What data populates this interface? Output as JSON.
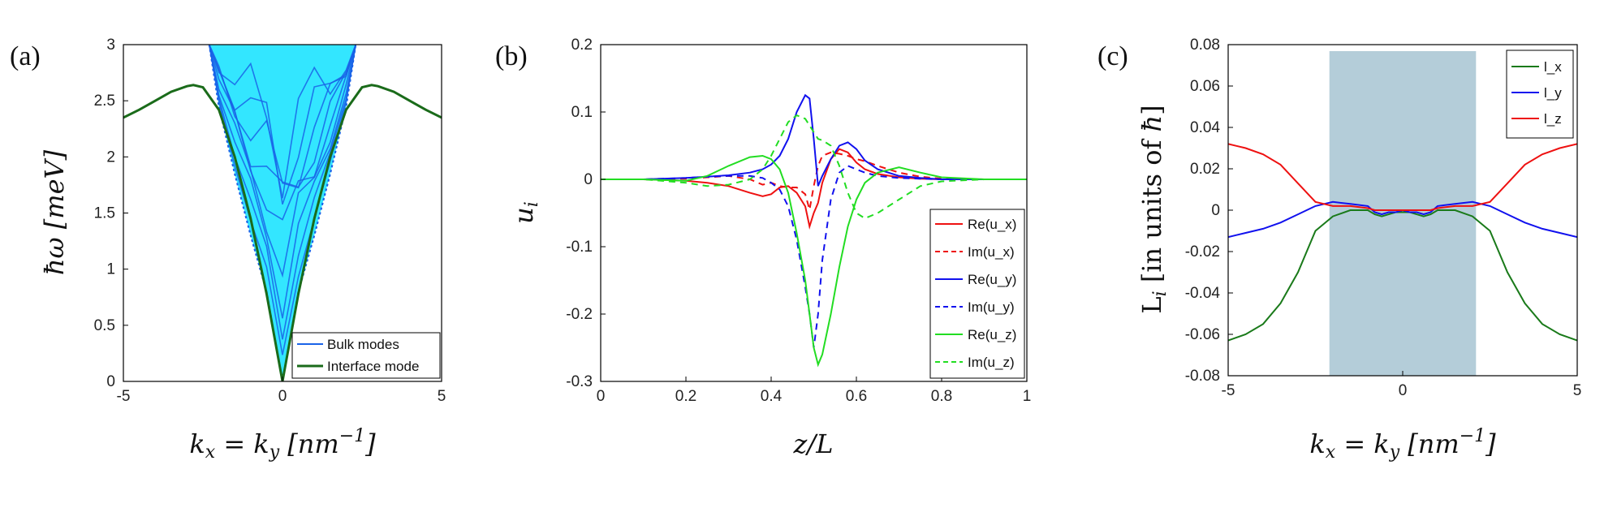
{
  "chart_data": [
    {
      "panel_label": "(a)",
      "type": "line",
      "xlabel": "k_x = k_y [nm^{-1}]",
      "ylabel": "ħω [meV]",
      "xlim": [
        -5,
        5
      ],
      "ylim": [
        0,
        3
      ],
      "xticks": [
        "-5",
        "0",
        "5"
      ],
      "yticks": [
        "0",
        "0.5",
        "1",
        "1.5",
        "2",
        "2.5",
        "3"
      ],
      "grid": false,
      "legend_position": "bottom-right",
      "colors": {
        "bulk": "#1a63e8",
        "bulk_fill": "#33e6ff",
        "interface": "#1a6b1a"
      },
      "series": [
        {
          "name": "Bulk modes",
          "style": "band",
          "x": [
            -2.3,
            -2.0,
            -1.5,
            -1.0,
            -0.5,
            0,
            0.5,
            1.0,
            1.5,
            2.0,
            2.3
          ],
          "y_upper": [
            3.0,
            3.0,
            3.0,
            3.0,
            3.0,
            3.0,
            3.0,
            3.0,
            3.0,
            3.0,
            3.0
          ],
          "y_lower": [
            3.0,
            2.45,
            1.85,
            1.3,
            0.8,
            0.0,
            0.8,
            1.3,
            1.85,
            2.45,
            3.0
          ]
        },
        {
          "name": "Interface mode",
          "x": [
            -5,
            -4.5,
            -4,
            -3.5,
            -3,
            -2.8,
            -2.5,
            -2,
            -1.5,
            -1,
            -0.5,
            0,
            0.5,
            1,
            1.5,
            2,
            2.5,
            2.8,
            3,
            3.5,
            4,
            4.5,
            5
          ],
          "y": [
            2.35,
            2.42,
            2.5,
            2.58,
            2.63,
            2.64,
            2.62,
            2.42,
            2.0,
            1.45,
            0.78,
            0.0,
            0.78,
            1.45,
            2.0,
            2.42,
            2.62,
            2.64,
            2.63,
            2.58,
            2.5,
            2.42,
            2.35
          ]
        }
      ]
    },
    {
      "panel_label": "(b)",
      "type": "line",
      "xlabel": "z/L",
      "ylabel": "u_i",
      "xlim": [
        0,
        1
      ],
      "ylim": [
        -0.3,
        0.2
      ],
      "xticks": [
        "0",
        "0.2",
        "0.4",
        "0.6",
        "0.8",
        "1"
      ],
      "yticks": [
        "-0.3",
        "-0.2",
        "-0.1",
        "0",
        "0.1",
        "0.2"
      ],
      "grid": false,
      "legend_position": "bottom-right",
      "x": [
        0,
        0.1,
        0.2,
        0.25,
        0.3,
        0.35,
        0.38,
        0.4,
        0.42,
        0.44,
        0.46,
        0.48,
        0.49,
        0.5,
        0.51,
        0.52,
        0.54,
        0.56,
        0.58,
        0.6,
        0.62,
        0.65,
        0.7,
        0.75,
        0.8,
        0.9,
        1.0
      ],
      "series": [
        {
          "name": "Re(u_x)",
          "color": "#ee1111",
          "dash": false,
          "y": [
            0,
            0,
            -0.002,
            -0.005,
            -0.01,
            -0.02,
            -0.025,
            -0.022,
            -0.012,
            -0.01,
            -0.02,
            -0.04,
            -0.07,
            -0.05,
            -0.035,
            -0.005,
            0.03,
            0.045,
            0.04,
            0.025,
            0.015,
            0.008,
            0.003,
            0.001,
            0,
            0,
            0
          ]
        },
        {
          "name": "Im(u_x)",
          "color": "#ee1111",
          "dash": true,
          "y": [
            0,
            0,
            0.001,
            0.003,
            0.005,
            0.0,
            -0.008,
            -0.005,
            -0.01,
            -0.012,
            -0.012,
            -0.022,
            -0.045,
            -0.01,
            0.02,
            0.035,
            0.04,
            0.038,
            0.035,
            0.03,
            0.027,
            0.02,
            0.01,
            0.004,
            0.001,
            0,
            0
          ]
        },
        {
          "name": "Re(u_y)",
          "color": "#1111ee",
          "dash": false,
          "y": [
            0,
            0,
            0.002,
            0.004,
            0.006,
            0.01,
            0.015,
            0.022,
            0.035,
            0.06,
            0.1,
            0.125,
            0.12,
            0.06,
            -0.01,
            0.005,
            0.03,
            0.05,
            0.055,
            0.045,
            0.028,
            0.015,
            0.005,
            0.002,
            0,
            0,
            0
          ]
        },
        {
          "name": "Im(u_y)",
          "color": "#1111ee",
          "dash": true,
          "y": [
            0,
            0,
            0.002,
            0.004,
            0.005,
            0.005,
            0.002,
            -0.005,
            -0.015,
            -0.04,
            -0.09,
            -0.16,
            -0.2,
            -0.25,
            -0.2,
            -0.12,
            -0.03,
            0.01,
            0.02,
            0.015,
            0.01,
            0.005,
            0.002,
            0.001,
            0,
            0,
            0
          ]
        },
        {
          "name": "Re(u_z)",
          "color": "#22dd22",
          "dash": false,
          "y": [
            0,
            0,
            -0.002,
            0.005,
            0.02,
            0.033,
            0.035,
            0.03,
            0.015,
            -0.02,
            -0.08,
            -0.15,
            -0.2,
            -0.25,
            -0.275,
            -0.26,
            -0.2,
            -0.13,
            -0.07,
            -0.03,
            -0.005,
            0.01,
            0.018,
            0.01,
            0.003,
            0,
            0
          ]
        },
        {
          "name": "Im(u_z)",
          "color": "#22dd22",
          "dash": true,
          "y": [
            0,
            0,
            -0.005,
            -0.01,
            -0.008,
            0.0,
            0.015,
            0.035,
            0.06,
            0.085,
            0.095,
            0.09,
            0.08,
            0.07,
            0.06,
            0.058,
            0.05,
            0.02,
            -0.02,
            -0.05,
            -0.058,
            -0.05,
            -0.03,
            -0.01,
            -0.003,
            0,
            0
          ]
        }
      ]
    },
    {
      "panel_label": "(c)",
      "type": "line",
      "xlabel": "k_x = k_y [nm^{-1}]",
      "ylabel": "L_i [in units of ħ]",
      "xlim": [
        -5,
        5
      ],
      "ylim": [
        -0.08,
        0.08
      ],
      "xticks": [
        "-5",
        "0",
        "5"
      ],
      "yticks": [
        "-0.08",
        "-0.06",
        "-0.04",
        "-0.02",
        "0",
        "0.02",
        "0.04",
        "0.06",
        "0.08"
      ],
      "grid": false,
      "legend_position": "top-right",
      "shaded_region": {
        "x": [
          -2.1,
          2.1
        ],
        "color": "#b4cdd9"
      },
      "x": [
        -5,
        -4.5,
        -4,
        -3.5,
        -3,
        -2.5,
        -2,
        -1.5,
        -1,
        -0.8,
        -0.6,
        -0.4,
        -0.2,
        0,
        0.2,
        0.4,
        0.6,
        0.8,
        1,
        1.5,
        2,
        2.5,
        3,
        3.5,
        4,
        4.5,
        5
      ],
      "series": [
        {
          "name": "l_x",
          "color": "#1a7a1a",
          "y": [
            -0.063,
            -0.06,
            -0.055,
            -0.045,
            -0.03,
            -0.01,
            -0.003,
            0.0,
            0.0,
            -0.002,
            -0.003,
            -0.002,
            -0.001,
            -0.001,
            -0.001,
            -0.002,
            -0.003,
            -0.002,
            0.0,
            0.0,
            -0.003,
            -0.01,
            -0.03,
            -0.045,
            -0.055,
            -0.06,
            -0.063
          ]
        },
        {
          "name": "l_y",
          "color": "#1111ee",
          "y": [
            -0.013,
            -0.011,
            -0.009,
            -0.006,
            -0.002,
            0.002,
            0.004,
            0.003,
            0.002,
            -0.001,
            -0.002,
            -0.001,
            -0.001,
            0.0,
            -0.001,
            -0.001,
            -0.002,
            -0.001,
            0.002,
            0.003,
            0.004,
            0.002,
            -0.002,
            -0.006,
            -0.009,
            -0.011,
            -0.013
          ]
        },
        {
          "name": "l_z",
          "color": "#ee1111",
          "y": [
            0.032,
            0.03,
            0.027,
            0.022,
            0.013,
            0.004,
            0.002,
            0.002,
            0.001,
            0.0,
            0.0,
            0.0,
            0.0,
            0.0,
            0.0,
            0.0,
            0.0,
            0.0,
            0.001,
            0.002,
            0.002,
            0.004,
            0.013,
            0.022,
            0.027,
            0.03,
            0.032
          ]
        }
      ]
    }
  ]
}
